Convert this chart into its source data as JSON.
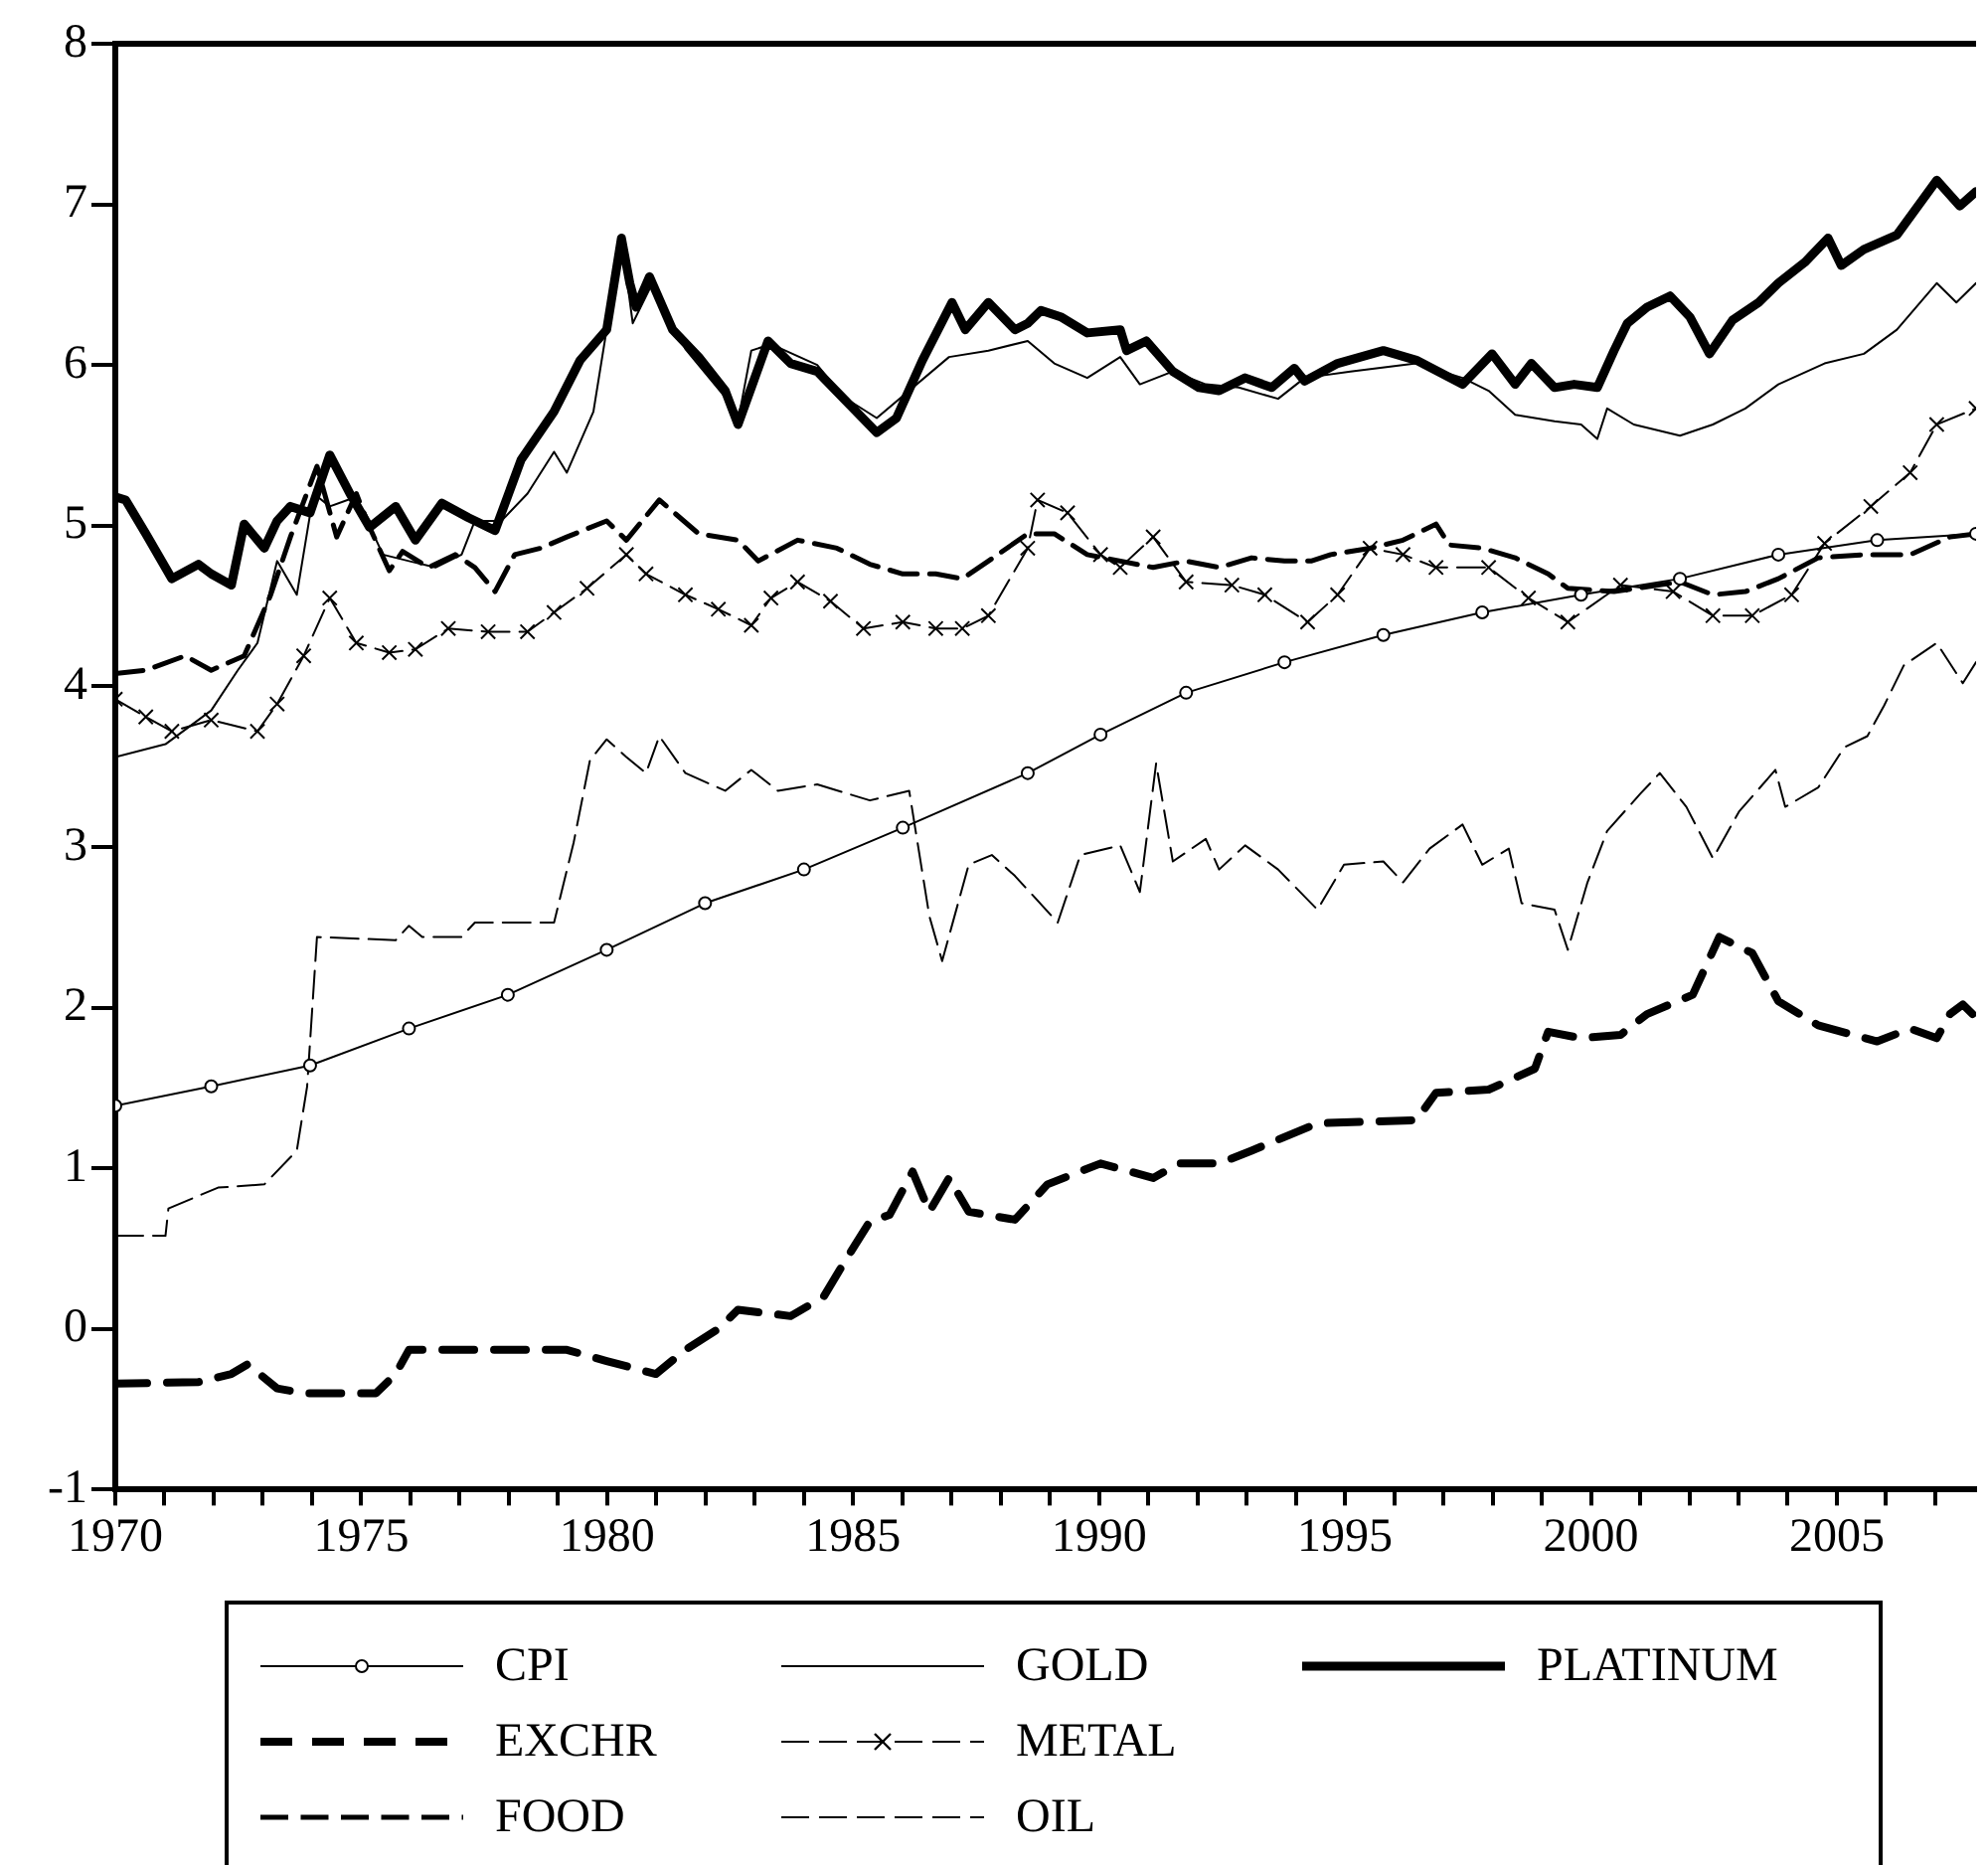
{
  "chart_data": {
    "type": "line",
    "xlim": [
      1970,
      2007.83
    ],
    "ylim": [
      -1,
      8
    ],
    "xticks": [
      1970,
      {
        "value": 1971,
        "label": null
      },
      {
        "value": 1972,
        "label": null
      },
      {
        "value": 1973,
        "label": null
      },
      {
        "value": 1974,
        "label": null
      },
      1975,
      {
        "value": 1976,
        "label": null
      },
      {
        "value": 1977,
        "label": null
      },
      {
        "value": 1978,
        "label": null
      },
      {
        "value": 1979,
        "label": null
      },
      1980,
      {
        "value": 1981,
        "label": null
      },
      {
        "value": 1982,
        "label": null
      },
      {
        "value": 1983,
        "label": null
      },
      {
        "value": 1984,
        "label": null
      },
      1985,
      {
        "value": 1986,
        "label": null
      },
      {
        "value": 1987,
        "label": null
      },
      {
        "value": 1988,
        "label": null
      },
      {
        "value": 1989,
        "label": null
      },
      1990,
      {
        "value": 1991,
        "label": null
      },
      {
        "value": 1992,
        "label": null
      },
      {
        "value": 1993,
        "label": null
      },
      {
        "value": 1994,
        "label": null
      },
      1995,
      {
        "value": 1996,
        "label": null
      },
      {
        "value": 1997,
        "label": null
      },
      {
        "value": 1998,
        "label": null
      },
      {
        "value": 1999,
        "label": null
      },
      2000,
      {
        "value": 2001,
        "label": null
      },
      {
        "value": 2002,
        "label": null
      },
      {
        "value": 2003,
        "label": null
      },
      {
        "value": 2004,
        "label": null
      },
      2005,
      {
        "value": 2006,
        "label": null
      },
      {
        "value": 2007,
        "label": null
      }
    ],
    "yticks": [
      -1,
      0,
      1,
      2,
      3,
      4,
      5,
      6,
      7,
      8
    ],
    "grid": false,
    "legend": "bottom",
    "series": [
      {
        "name": "CPI",
        "color": "#000000",
        "line_style": "solid",
        "marker": "circle",
        "x": [
          1970.0,
          1971.95,
          1973.96,
          1975.97,
          1977.98,
          1979.99,
          1981.99,
          1984.0,
          1986.01,
          1988.55,
          1990.03,
          1991.77,
          1993.77,
          1995.78,
          1997.79,
          1999.8,
          2001.81,
          2003.81,
          2005.82,
          2007.83
        ],
        "values": [
          1.39,
          1.51,
          1.64,
          1.87,
          2.08,
          2.36,
          2.65,
          2.86,
          3.12,
          3.46,
          3.7,
          3.96,
          4.15,
          4.32,
          4.46,
          4.57,
          4.67,
          4.82,
          4.91,
          4.95
        ]
      },
      {
        "name": "EXCHR",
        "color": "#000000",
        "line_style": "dashed",
        "marker": "none",
        "x": [
          1970.0,
          1971.69,
          1972.36,
          1972.69,
          1973.29,
          1973.83,
          1975.3,
          1975.7,
          1975.97,
          1979.18,
          1979.99,
          1980.99,
          1981.59,
          1982.26,
          1982.66,
          1983.73,
          1984.4,
          1984.81,
          1985.34,
          1985.74,
          1986.21,
          1986.55,
          1986.95,
          1987.35,
          1988.29,
          1988.95,
          1990.03,
          1991.1,
          1991.63,
          1992.44,
          1993.1,
          1994.44,
          1996.45,
          1996.85,
          1997.92,
          1998.86,
          1999.13,
          1999.8,
          2000.6,
          2001.14,
          2002.07,
          2002.61,
          2003.28,
          2003.81,
          2004.62,
          2005.82,
          2006.49,
          2007.03,
          2007.3,
          2007.56,
          2007.76
        ],
        "values": [
          -0.34,
          -0.33,
          -0.28,
          -0.22,
          -0.37,
          -0.4,
          -0.4,
          -0.28,
          -0.13,
          -0.13,
          -0.2,
          -0.28,
          -0.13,
          0.0,
          0.12,
          0.08,
          0.2,
          0.41,
          0.67,
          0.71,
          0.98,
          0.73,
          0.94,
          0.73,
          0.68,
          0.9,
          1.03,
          0.94,
          1.03,
          1.03,
          1.11,
          1.28,
          1.3,
          1.47,
          1.49,
          1.62,
          1.85,
          1.81,
          1.83,
          1.96,
          2.08,
          2.44,
          2.34,
          2.04,
          1.89,
          1.79,
          1.87,
          1.81,
          1.96,
          2.02,
          1.96
        ]
      },
      {
        "name": "FOOD",
        "color": "#000000",
        "line_style": "dashed",
        "marker": "none",
        "x": [
          1970.0,
          1970.62,
          1971.42,
          1971.95,
          1972.62,
          1973.16,
          1973.56,
          1974.1,
          1974.5,
          1974.9,
          1975.17,
          1975.57,
          1975.84,
          1976.37,
          1976.91,
          1977.31,
          1977.72,
          1978.12,
          1978.65,
          1979.18,
          1979.99,
          1980.39,
          1981.06,
          1981.86,
          1982.66,
          1983.07,
          1983.87,
          1984.67,
          1985.34,
          1986.01,
          1986.68,
          1987.22,
          1987.75,
          1988.55,
          1989.09,
          1989.76,
          1991.1,
          1991.77,
          1992.44,
          1993.1,
          1993.77,
          1994.31,
          1994.71,
          1995.51,
          1996.18,
          1996.85,
          1997.12,
          1997.79,
          1998.46,
          1999.13,
          1999.53,
          2000.47,
          2001.81,
          2002.48,
          2003.14,
          2003.81,
          2004.62,
          2005.55,
          2006.49,
          2007.3,
          2007.83
        ],
        "values": [
          4.08,
          4.1,
          4.19,
          4.1,
          4.19,
          4.57,
          4.93,
          5.37,
          4.93,
          5.2,
          4.99,
          4.72,
          4.84,
          4.74,
          4.82,
          4.74,
          4.59,
          4.82,
          4.86,
          4.93,
          5.03,
          4.91,
          5.16,
          4.95,
          4.91,
          4.78,
          4.91,
          4.86,
          4.76,
          4.7,
          4.7,
          4.67,
          4.78,
          4.95,
          4.95,
          4.82,
          4.74,
          4.78,
          4.74,
          4.8,
          4.78,
          4.78,
          4.82,
          4.86,
          4.91,
          5.01,
          4.88,
          4.86,
          4.8,
          4.7,
          4.61,
          4.59,
          4.65,
          4.57,
          4.59,
          4.67,
          4.8,
          4.82,
          4.82,
          4.93,
          4.95
        ]
      },
      {
        "name": "GOLD",
        "color": "#000000",
        "line_style": "solid",
        "marker": "none",
        "x": [
          1970.0,
          1971.02,
          1971.95,
          1972.49,
          1972.89,
          1973.29,
          1973.69,
          1974.03,
          1974.36,
          1974.9,
          1975.44,
          1975.97,
          1976.51,
          1977.04,
          1977.31,
          1977.85,
          1978.38,
          1978.92,
          1979.18,
          1979.72,
          1980.12,
          1980.32,
          1980.52,
          1980.92,
          1981.59,
          1982.4,
          1982.66,
          1982.93,
          1983.33,
          1984.27,
          1984.81,
          1985.48,
          1986.95,
          1987.75,
          1988.55,
          1989.09,
          1989.76,
          1990.43,
          1990.83,
          1991.5,
          1992.17,
          1992.84,
          1993.64,
          1994.18,
          1995.11,
          1996.45,
          1997.39,
          1997.92,
          1998.46,
          1999.26,
          1999.8,
          2000.13,
          2000.33,
          2000.87,
          2001.81,
          2002.48,
          2003.14,
          2003.81,
          2004.75,
          2005.55,
          2006.22,
          2007.03,
          2007.43,
          2007.83
        ],
        "values": [
          3.56,
          3.64,
          3.85,
          4.1,
          4.27,
          4.78,
          4.57,
          5.2,
          5.12,
          5.18,
          4.82,
          4.78,
          4.74,
          4.82,
          5.03,
          5.03,
          5.2,
          5.46,
          5.33,
          5.71,
          6.47,
          6.72,
          6.26,
          6.51,
          6.1,
          5.8,
          5.65,
          6.09,
          6.13,
          6.0,
          5.8,
          5.67,
          6.05,
          6.09,
          6.15,
          6.01,
          5.92,
          6.05,
          5.88,
          5.96,
          5.88,
          5.86,
          5.79,
          5.92,
          5.96,
          6.01,
          5.92,
          5.84,
          5.69,
          5.65,
          5.63,
          5.54,
          5.73,
          5.63,
          5.56,
          5.63,
          5.73,
          5.88,
          6.01,
          6.07,
          6.22,
          6.51,
          6.39,
          6.51
        ]
      },
      {
        "name": "METAL",
        "color": "#000000",
        "line_style": "dashed",
        "marker": "cross",
        "x": [
          1970.0,
          1970.62,
          1971.15,
          1971.95,
          1972.89,
          1973.29,
          1973.83,
          1974.36,
          1974.9,
          1975.57,
          1976.1,
          1976.77,
          1977.58,
          1978.38,
          1978.92,
          1979.59,
          1980.39,
          1980.79,
          1981.59,
          1982.26,
          1982.93,
          1983.33,
          1983.87,
          1984.54,
          1985.21,
          1986.01,
          1986.68,
          1987.22,
          1987.75,
          1988.55,
          1988.75,
          1989.36,
          1990.03,
          1990.43,
          1991.1,
          1991.77,
          1992.7,
          1993.37,
          1994.24,
          1994.85,
          1995.51,
          1996.18,
          1996.85,
          1997.92,
          1998.73,
          1999.53,
          2000.6,
          2001.67,
          2002.48,
          2003.28,
          2004.08,
          2004.75,
          2005.69,
          2006.49,
          2007.03,
          2007.83
        ],
        "values": [
          3.92,
          3.81,
          3.72,
          3.79,
          3.72,
          3.89,
          4.19,
          4.55,
          4.27,
          4.21,
          4.23,
          4.36,
          4.34,
          4.34,
          4.46,
          4.61,
          4.82,
          4.7,
          4.57,
          4.48,
          4.38,
          4.55,
          4.65,
          4.53,
          4.36,
          4.4,
          4.36,
          4.36,
          4.44,
          4.86,
          5.16,
          5.08,
          4.82,
          4.74,
          4.93,
          4.65,
          4.63,
          4.57,
          4.4,
          4.57,
          4.86,
          4.82,
          4.74,
          4.74,
          4.55,
          4.4,
          4.63,
          4.59,
          4.44,
          4.44,
          4.57,
          4.89,
          5.12,
          5.33,
          5.63,
          5.73
        ]
      },
      {
        "name": "OIL",
        "color": "#000000",
        "line_style": "dashed",
        "marker": "none",
        "x": [
          1970.0,
          1971.02,
          1971.08,
          1972.09,
          1973.03,
          1973.69,
          1973.9,
          1974.1,
          1975.7,
          1975.97,
          1976.24,
          1977.04,
          1977.31,
          1978.92,
          1979.32,
          1979.65,
          1979.99,
          1980.39,
          1980.79,
          1981.06,
          1981.59,
          1982.4,
          1982.93,
          1983.47,
          1984.27,
          1985.34,
          1986.14,
          1986.55,
          1986.81,
          1987.35,
          1987.82,
          1988.29,
          1989.16,
          1989.62,
          1990.43,
          1990.83,
          1991.16,
          1991.5,
          1992.17,
          1992.44,
          1992.97,
          1993.64,
          1994.44,
          1994.98,
          1995.78,
          1996.18,
          1996.72,
          1997.39,
          1997.79,
          1998.33,
          1998.59,
          1999.26,
          1999.53,
          1999.93,
          2000.33,
          2001.0,
          2001.4,
          2001.94,
          2002.48,
          2003.01,
          2003.75,
          2003.95,
          2004.62,
          2005.15,
          2005.62,
          2005.96,
          2006.36,
          2007.03,
          2007.56,
          2007.83
        ],
        "values": [
          0.58,
          0.58,
          0.75,
          0.88,
          0.9,
          1.11,
          1.51,
          2.44,
          2.42,
          2.51,
          2.44,
          2.44,
          2.53,
          2.53,
          3.03,
          3.54,
          3.67,
          3.56,
          3.46,
          3.69,
          3.46,
          3.35,
          3.48,
          3.35,
          3.39,
          3.29,
          3.35,
          2.57,
          2.29,
          2.89,
          2.95,
          2.82,
          2.53,
          2.95,
          3.01,
          2.72,
          3.52,
          2.91,
          3.05,
          2.86,
          3.01,
          2.86,
          2.61,
          2.89,
          2.91,
          2.78,
          2.99,
          3.14,
          2.89,
          2.99,
          2.65,
          2.61,
          2.36,
          2.78,
          3.1,
          3.33,
          3.46,
          3.25,
          2.93,
          3.22,
          3.48,
          3.25,
          3.37,
          3.62,
          3.69,
          3.88,
          4.13,
          4.27,
          4.02,
          4.15
        ]
      },
      {
        "name": "PLATINUM",
        "color": "#000000",
        "line_style": "solid",
        "marker": "none",
        "x": [
          1970.0,
          1970.21,
          1970.62,
          1971.15,
          1971.69,
          1971.95,
          1972.36,
          1972.62,
          1973.03,
          1973.29,
          1973.56,
          1973.96,
          1974.36,
          1974.77,
          1975.17,
          1975.7,
          1976.1,
          1976.64,
          1977.18,
          1977.72,
          1978.25,
          1978.92,
          1979.45,
          1979.99,
          1980.29,
          1980.46,
          1980.59,
          1980.86,
          1981.33,
          1981.86,
          1982.4,
          1982.66,
          1983.27,
          1983.73,
          1984.27,
          1984.81,
          1985.48,
          1985.88,
          1986.41,
          1987.01,
          1987.28,
          1987.75,
          1988.29,
          1988.55,
          1988.82,
          1989.22,
          1989.76,
          1990.43,
          1990.56,
          1990.96,
          1991.5,
          1992.03,
          1992.44,
          1992.97,
          1993.51,
          1993.97,
          1994.18,
          1994.85,
          1995.78,
          1996.45,
          1997.39,
          1997.99,
          1998.46,
          1998.79,
          1999.26,
          1999.66,
          2000.13,
          2000.47,
          2000.74,
          2001.14,
          2001.61,
          2002.01,
          2002.41,
          2002.88,
          2003.41,
          2003.81,
          2004.35,
          2004.82,
          2005.09,
          2005.55,
          2006.22,
          2007.03,
          2007.5,
          2007.83
        ],
        "values": [
          5.18,
          5.16,
          4.95,
          4.67,
          4.76,
          4.7,
          4.63,
          5.01,
          4.86,
          5.03,
          5.12,
          5.08,
          5.44,
          5.2,
          4.99,
          5.12,
          4.91,
          5.14,
          5.05,
          4.97,
          5.41,
          5.71,
          6.03,
          6.22,
          6.79,
          6.51,
          6.36,
          6.55,
          6.22,
          6.05,
          5.84,
          5.63,
          6.15,
          6.01,
          5.96,
          5.79,
          5.58,
          5.67,
          6.03,
          6.39,
          6.22,
          6.39,
          6.22,
          6.26,
          6.34,
          6.3,
          6.2,
          6.22,
          6.09,
          6.15,
          5.96,
          5.86,
          5.84,
          5.92,
          5.86,
          5.98,
          5.9,
          6.01,
          6.09,
          6.03,
          5.88,
          6.07,
          5.88,
          6.01,
          5.86,
          5.88,
          5.86,
          6.09,
          6.26,
          6.36,
          6.43,
          6.3,
          6.07,
          6.28,
          6.39,
          6.51,
          6.64,
          6.79,
          6.62,
          6.72,
          6.81,
          7.15,
          6.99,
          7.08
        ]
      }
    ]
  }
}
